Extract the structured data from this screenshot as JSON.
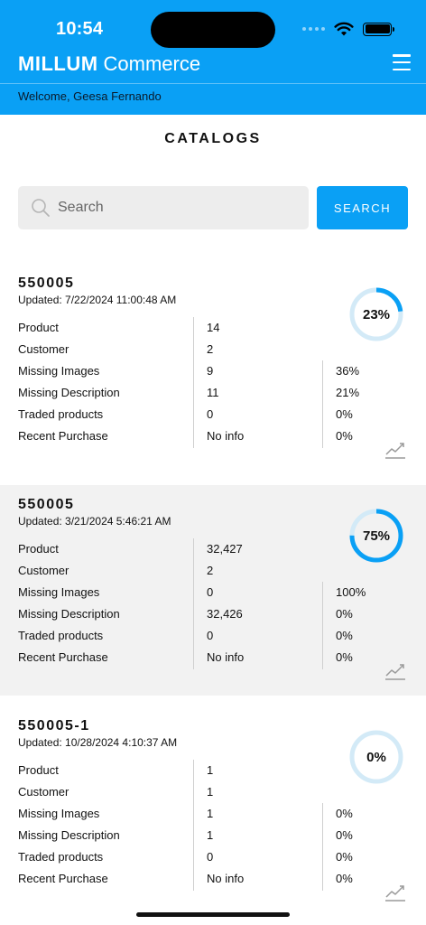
{
  "status_bar": {
    "time": "10:54"
  },
  "header": {
    "brand_bold": "MILLUM",
    "brand_light": "Commerce",
    "welcome": "Welcome, Geesa Fernando",
    "accent_color": "#0aa0f5",
    "menu_icon": "hamburger-icon"
  },
  "page": {
    "title": "CATALOGS"
  },
  "search": {
    "placeholder": "Search",
    "value": "",
    "button_label": "SEARCH",
    "icon": "search-icon"
  },
  "catalogs": [
    {
      "id": "550005",
      "updated": "Updated: 7/22/2024 11:00:48 AM",
      "progress_label": "23%",
      "progress": 0.23,
      "rows": [
        {
          "label": "Product",
          "value": "14",
          "pct": ""
        },
        {
          "label": "Customer",
          "value": "2",
          "pct": ""
        },
        {
          "label": "Missing Images",
          "value": "9",
          "pct": "36%"
        },
        {
          "label": "Missing Description",
          "value": "11",
          "pct": "21%"
        },
        {
          "label": "Traded products",
          "value": "0",
          "pct": "0%"
        },
        {
          "label": "Recent Purchase",
          "value": "No info",
          "pct": "0%"
        }
      ]
    },
    {
      "id": "550005",
      "updated": "Updated: 3/21/2024 5:46:21 AM",
      "progress_label": "75%",
      "progress": 0.75,
      "rows": [
        {
          "label": "Product",
          "value": "32,427",
          "pct": ""
        },
        {
          "label": "Customer",
          "value": "2",
          "pct": ""
        },
        {
          "label": "Missing Images",
          "value": "0",
          "pct": "100%"
        },
        {
          "label": "Missing Description",
          "value": "32,426",
          "pct": "0%"
        },
        {
          "label": "Traded products",
          "value": "0",
          "pct": "0%"
        },
        {
          "label": "Recent Purchase",
          "value": "No info",
          "pct": "0%"
        }
      ]
    },
    {
      "id": "550005-1",
      "updated": "Updated: 10/28/2024 4:10:37 AM",
      "progress_label": "0%",
      "progress": 0,
      "rows": [
        {
          "label": "Product",
          "value": "1",
          "pct": ""
        },
        {
          "label": "Customer",
          "value": "1",
          "pct": ""
        },
        {
          "label": "Missing Images",
          "value": "1",
          "pct": "0%"
        },
        {
          "label": "Missing Description",
          "value": "1",
          "pct": "0%"
        },
        {
          "label": "Traded products",
          "value": "0",
          "pct": "0%"
        },
        {
          "label": "Recent Purchase",
          "value": "No info",
          "pct": "0%"
        }
      ]
    }
  ]
}
